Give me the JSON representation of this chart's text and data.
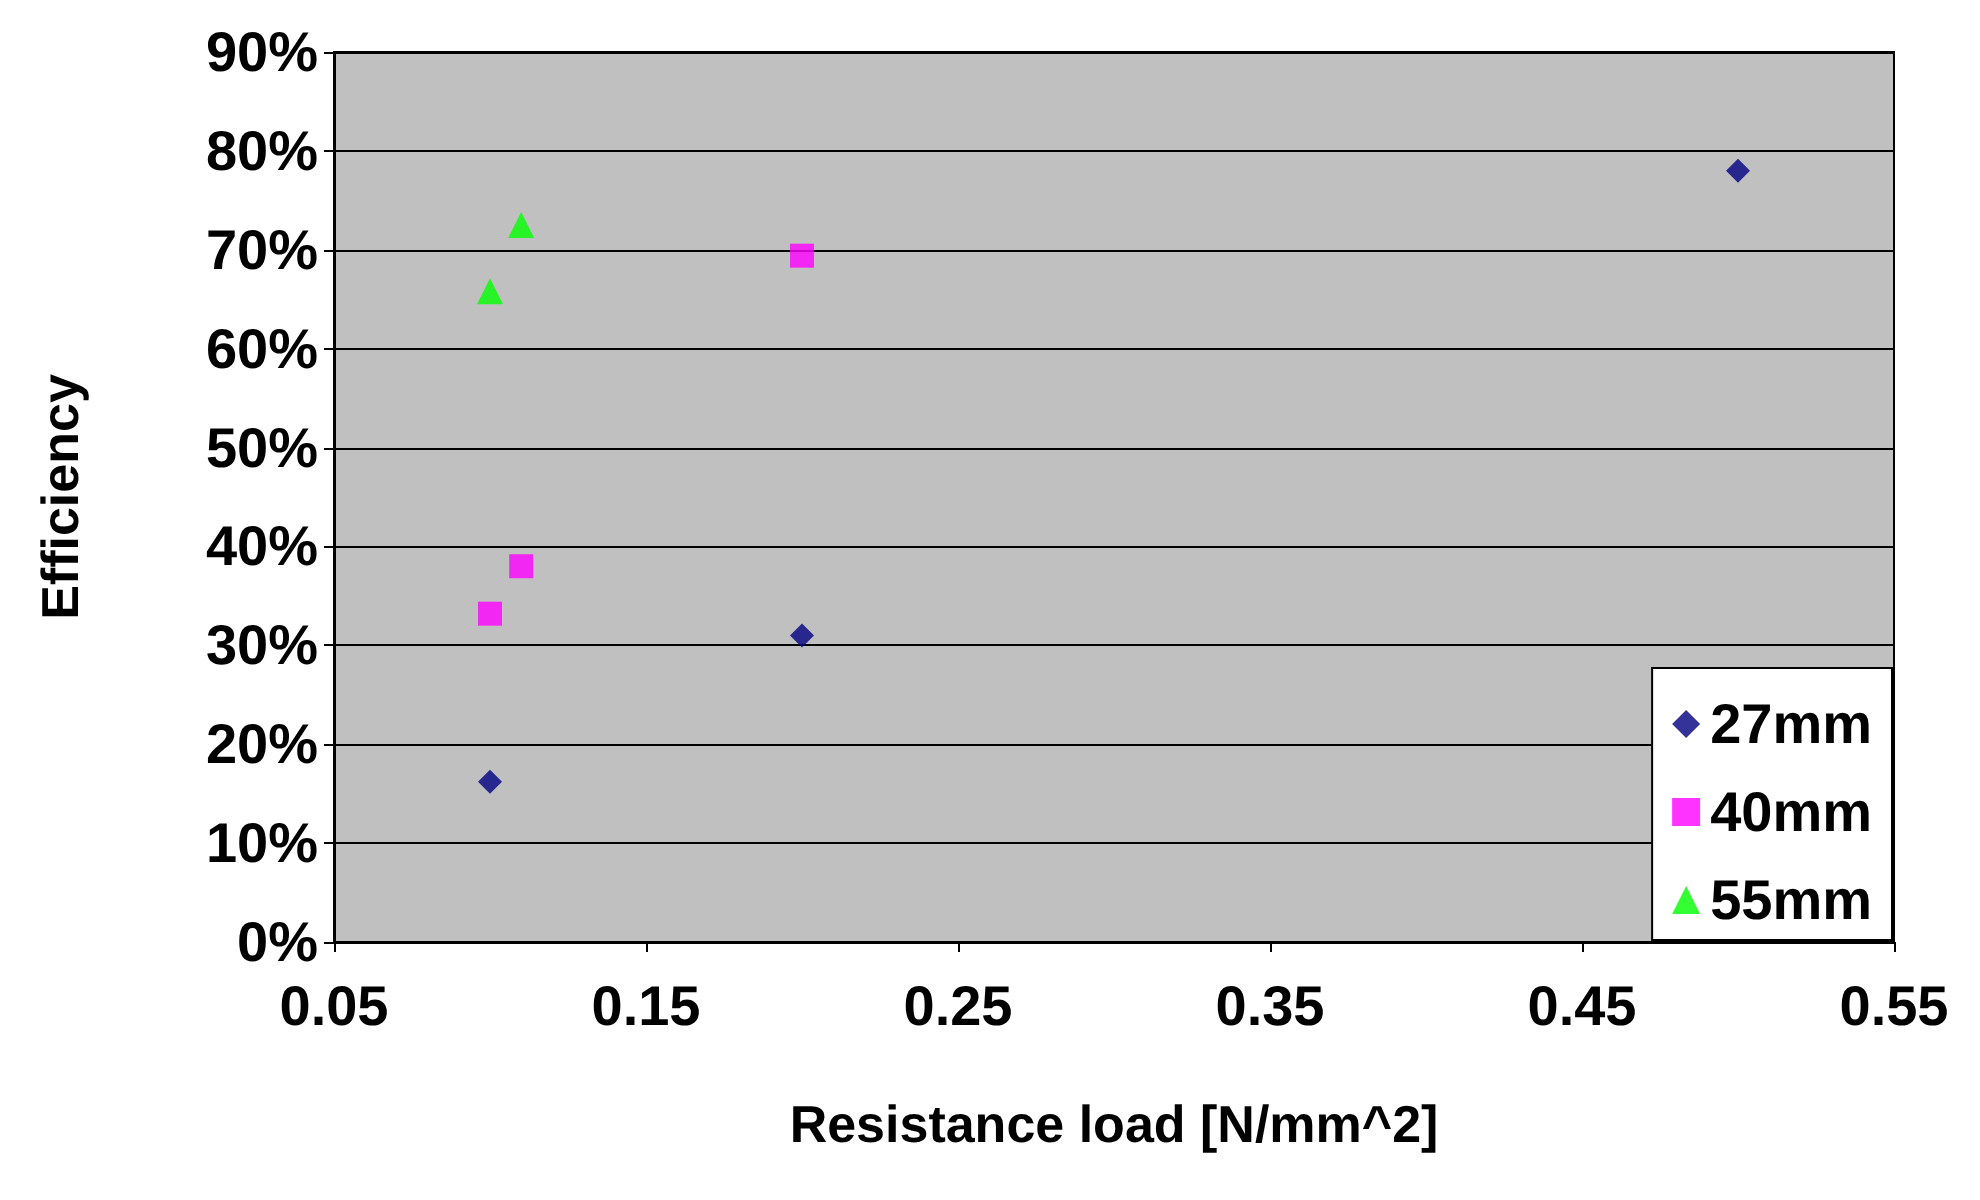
{
  "chart_data": {
    "type": "scatter",
    "xlabel": "Resistance load [N/mm^2]",
    "ylabel": "Efficiency",
    "xlim": [
      0.05,
      0.55
    ],
    "xticks": [
      0.05,
      0.15,
      0.25,
      0.35,
      0.45,
      0.55
    ],
    "ylim": [
      0,
      90
    ],
    "yticks": [
      {
        "value": 0,
        "label": "0%"
      },
      {
        "value": 10,
        "label": "10%"
      },
      {
        "value": 20,
        "label": "20%"
      },
      {
        "value": 30,
        "label": "30%"
      },
      {
        "value": 40,
        "label": "40%"
      },
      {
        "value": 50,
        "label": "50%"
      },
      {
        "value": 60,
        "label": "60%"
      },
      {
        "value": 70,
        "label": "70%"
      },
      {
        "value": 80,
        "label": "80%"
      },
      {
        "value": 90,
        "label": "90%"
      }
    ],
    "grid": "y",
    "legend": "bottom right",
    "series": [
      {
        "name": "27mm",
        "color": "#000080",
        "marker": "diamond",
        "x": [
          0.1,
          0.2,
          0.5
        ],
        "values": [
          16.2,
          31,
          78
        ]
      },
      {
        "name": "40mm",
        "color": "#ff00ff",
        "marker": "square",
        "x": [
          0.1,
          0.11,
          0.2
        ],
        "values": [
          33.2,
          38,
          69.4
        ]
      },
      {
        "name": "55mm",
        "color": "#00ff00",
        "marker": "triangle",
        "x": [
          0.1,
          0.11
        ],
        "values": [
          65.8,
          72.5
        ]
      }
    ]
  }
}
